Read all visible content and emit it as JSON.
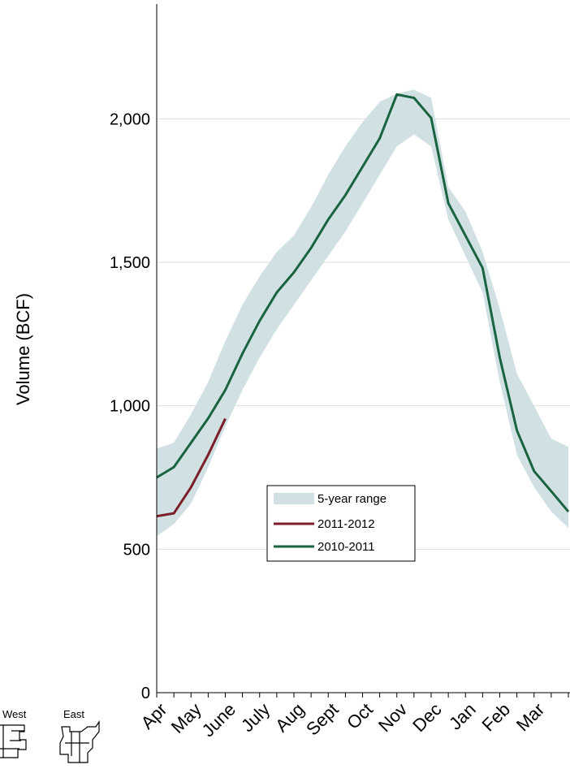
{
  "chart_data": {
    "type": "line",
    "y_label": "Volume (BCF)",
    "categories": [
      "Apr",
      null,
      "May",
      null,
      "June",
      null,
      "July",
      null,
      "Aug",
      null,
      "Sept",
      null,
      "Oct",
      null,
      "Nov",
      null,
      "Dec",
      null,
      "Jan",
      null,
      "Feb",
      null,
      "Mar",
      null,
      null
    ],
    "ylim": [
      0,
      2400
    ],
    "yticks": [
      0,
      500,
      {
        "value": 1000,
        "label": "1,000"
      },
      {
        "value": 1500,
        "label": "1,500"
      },
      {
        "value": 2000,
        "label": "2,000"
      }
    ],
    "grid": true,
    "band": {
      "name": "5-year range",
      "color": "#d0e0e3",
      "low": [
        546,
        588,
        659,
        786,
        928,
        1055,
        1168,
        1267,
        1352,
        1437,
        1522,
        1607,
        1706,
        1805,
        1904,
        1946,
        1904,
        1649,
        1522,
        1395,
        1083,
        829,
        716,
        631,
        574
      ],
      "high": [
        851,
        871,
        970,
        1083,
        1225,
        1352,
        1451,
        1536,
        1593,
        1692,
        1805,
        1904,
        1989,
        2059,
        2088,
        2102,
        2073,
        1762,
        1677,
        1536,
        1338,
        1112,
        999,
        885,
        857
      ]
    },
    "series": [
      {
        "name": "2011-2012",
        "color": "#7b1e2a",
        "values": [
          615,
          625,
          716,
          829,
          955,
          null,
          null,
          null,
          null,
          null,
          null,
          null,
          null,
          null,
          null,
          null,
          null,
          null,
          null,
          null,
          null,
          null,
          null,
          null,
          null
        ]
      },
      {
        "name": "2010-2011",
        "color": "#1a6340",
        "values": [
          750,
          786,
          871,
          956,
          1055,
          1182,
          1296,
          1395,
          1465,
          1550,
          1649,
          1734,
          1833,
          1932,
          2085,
          2073,
          2003,
          1706,
          1593,
          1480,
          1168,
          914,
          772,
          702,
          631
        ]
      }
    ],
    "legend": "lower-center",
    "map_labels": [
      "West",
      "East"
    ]
  }
}
